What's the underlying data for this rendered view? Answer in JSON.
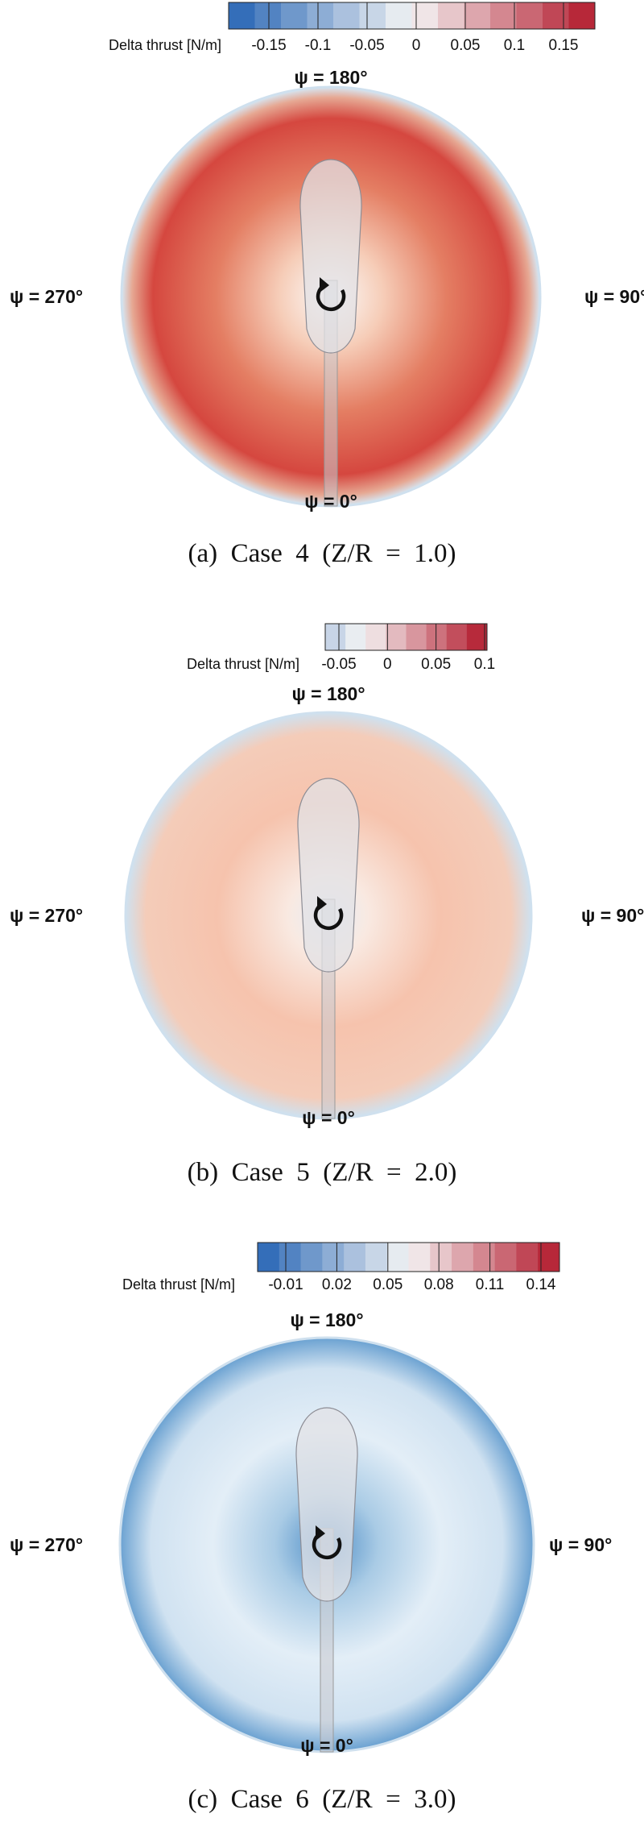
{
  "panels": [
    {
      "colorbar": {
        "label": "Delta thrust [N/m]",
        "ticks": [
          "-0.15",
          "-0.1",
          "-0.05",
          "0",
          "0.05",
          "0.1",
          "0.15"
        ]
      },
      "azimuth": {
        "top": "ψ = 180°",
        "left": "ψ = 270°",
        "right": "ψ = 90°",
        "bottom": "ψ = 0°"
      },
      "caption": "(a)  Case  4  (Z/R  =  1.0)"
    },
    {
      "colorbar": {
        "label": "Delta thrust [N/m]",
        "ticks": [
          "-0.05",
          "0",
          "0.05",
          "0.1"
        ]
      },
      "azimuth": {
        "top": "ψ = 180°",
        "left": "ψ = 270°",
        "right": "ψ = 90°",
        "bottom": "ψ = 0°"
      },
      "caption": "(b)  Case  5  (Z/R  =  2.0)"
    },
    {
      "colorbar": {
        "label": "Delta thrust [N/m]",
        "ticks": [
          "-0.01",
          "0.02",
          "0.05",
          "0.08",
          "0.11",
          "0.14"
        ]
      },
      "azimuth": {
        "top": "ψ = 180°",
        "left": "ψ = 270°",
        "right": "ψ = 90°",
        "bottom": "ψ = 0°"
      },
      "caption": "(c)  Case  6  (Z/R  =  3.0)"
    }
  ]
}
